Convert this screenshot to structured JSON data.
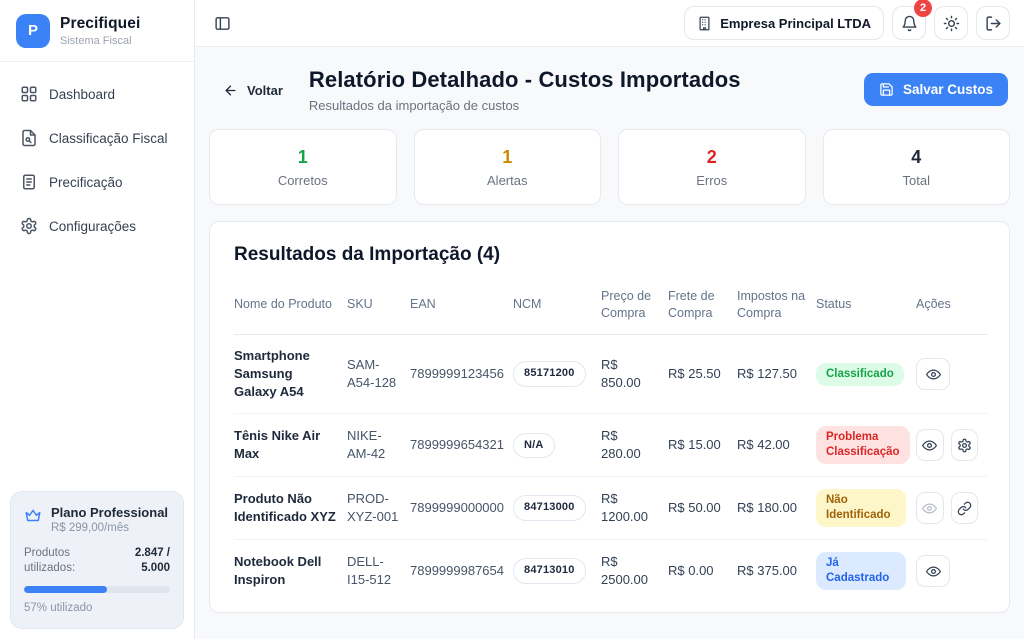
{
  "brand": {
    "logo_letter": "P",
    "name": "Precifiquei",
    "subtitle": "Sistema Fiscal"
  },
  "sidebar": {
    "items": [
      {
        "label": "Dashboard",
        "icon": "dashboard-grid-icon"
      },
      {
        "label": "Classificação Fiscal",
        "icon": "file-search-icon"
      },
      {
        "label": "Precificação",
        "icon": "document-lines-icon"
      },
      {
        "label": "Configurações",
        "icon": "gear-icon"
      }
    ],
    "plan": {
      "name": "Plano Professional",
      "price": "R$ 299,00/mês",
      "usage_label": "Produtos utilizados:",
      "usage_value": "2.847 / 5.000",
      "percent": 57,
      "percent_label": "57% utilizado"
    }
  },
  "header": {
    "company": "Empresa Principal LTDA",
    "notification_count": "2"
  },
  "page": {
    "back_label": "Voltar",
    "title": "Relatório Detalhado - Custos Importados",
    "subtitle": "Resultados da importação de custos",
    "save_label": "Salvar Custos"
  },
  "summary": {
    "cards": [
      {
        "value": "1",
        "label": "Corretos",
        "color": "#16a34a"
      },
      {
        "value": "1",
        "label": "Alertas",
        "color": "#ca8a04"
      },
      {
        "value": "2",
        "label": "Erros",
        "color": "#dc2626"
      },
      {
        "value": "4",
        "label": "Total",
        "color": "#1e293b"
      }
    ]
  },
  "results": {
    "title": "Resultados da Importação (4)",
    "columns": [
      "Nome do Produto",
      "SKU",
      "EAN",
      "NCM",
      "Preço de Compra",
      "Frete de Compra",
      "Impostos na Compra",
      "Status",
      "Ações"
    ],
    "rows": [
      {
        "name": "Smartphone Samsung Galaxy A54",
        "sku": "SAM-A54-128",
        "ean": "7899999123456",
        "ncm": "85171200",
        "price": "R$ 850.00",
        "freight": "R$ 25.50",
        "taxes": "R$ 127.50",
        "status": "Classificado",
        "status_type": "success",
        "actions": [
          "view"
        ]
      },
      {
        "name": "Tênis Nike Air Max",
        "sku": "NIKE-AM-42",
        "ean": "7899999654321",
        "ncm": "N/A",
        "price": "R$ 280.00",
        "freight": "R$ 15.00",
        "taxes": "R$ 42.00",
        "status": "Problema Classificação",
        "status_type": "error",
        "actions": [
          "view",
          "settings"
        ]
      },
      {
        "name": "Produto Não Identificado XYZ",
        "sku": "PROD-XYZ-001",
        "ean": "7899999000000",
        "ncm": "84713000",
        "price": "R$ 1200.00",
        "freight": "R$ 50.00",
        "taxes": "R$ 180.00",
        "status": "Não Identificado",
        "status_type": "warning",
        "actions": [
          "view-disabled",
          "link"
        ]
      },
      {
        "name": "Notebook Dell Inspiron",
        "sku": "DELL-I15-512",
        "ean": "7899999987654",
        "ncm": "84713010",
        "price": "R$ 2500.00",
        "freight": "R$ 0.00",
        "taxes": "R$ 375.00",
        "status": "Já Cadastrado",
        "status_type": "info",
        "actions": [
          "view"
        ]
      }
    ]
  },
  "colors": {
    "primary": "#3b82f6",
    "success": "#16a34a",
    "warning": "#ca8a04",
    "error": "#dc2626",
    "info": "#2563eb",
    "badge_bg_success": "#dcfce7",
    "badge_bg_error": "#fee2e2",
    "badge_bg_warning": "#fdf6c9",
    "badge_bg_info": "#dbeafe"
  },
  "icons": {
    "sidebar-toggle-icon": "panel-left",
    "building-icon": "office building",
    "bell-icon": "notifications bell",
    "sun-icon": "light theme sun",
    "logout-icon": "exit door arrow",
    "crown-icon": "plan crown",
    "back-arrow-icon": "arrow left",
    "save-icon": "floppy disk",
    "eye-icon": "view details",
    "gear-icon": "settings",
    "link-icon": "chain link"
  }
}
